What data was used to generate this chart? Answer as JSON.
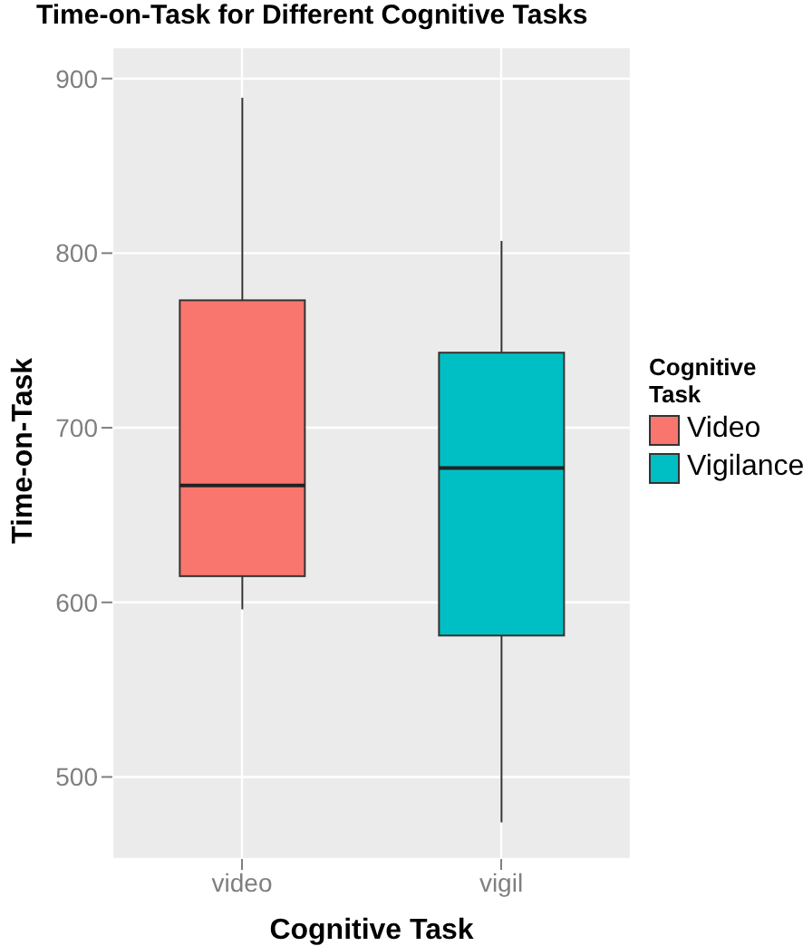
{
  "chart_data": {
    "type": "box",
    "title": "Time-on-Task for Different Cognitive Tasks",
    "xlabel": "Cognitive Task",
    "ylabel": "Time-on-Task",
    "legend_title": "Cognitive Task",
    "categories": [
      "video",
      "vigil"
    ],
    "series": [
      {
        "name": "Video",
        "color": "#f8766d",
        "boxes": [
          {
            "low": 596,
            "q1": 615,
            "median": 667,
            "q3": 773,
            "high": 889
          },
          null
        ]
      },
      {
        "name": "Vigilance",
        "color": "#00bfc4",
        "boxes": [
          null,
          {
            "low": 474,
            "q1": 581,
            "median": 677,
            "q3": 743,
            "high": 807
          }
        ]
      }
    ],
    "ylim": [
      453,
      918
    ],
    "yticks": [
      500,
      600,
      700,
      800,
      900
    ],
    "grid": true,
    "legend": "right"
  }
}
